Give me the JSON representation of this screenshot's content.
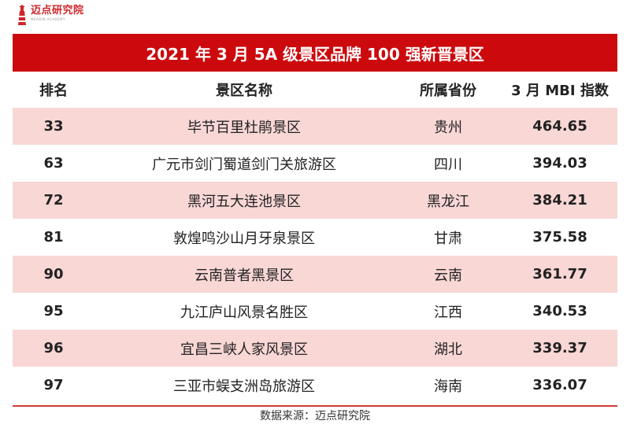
{
  "logo": {
    "name": "迈点研究院",
    "sub": "MEADIN ACADEMY"
  },
  "title": "2021 年 3 月 5A 级景区品牌 100 强新晋景区",
  "table": {
    "headers": [
      "排名",
      "景区名称",
      "所属省份",
      "3 月 MBI 指数"
    ],
    "rows": [
      {
        "rank": "33",
        "name": "毕节百里杜鹃景区",
        "province": "贵州",
        "mbi": "464.65"
      },
      {
        "rank": "63",
        "name": "广元市剑门蜀道剑门关旅游区",
        "province": "四川",
        "mbi": "394.03"
      },
      {
        "rank": "72",
        "name": "黑河五大连池景区",
        "province": "黑龙江",
        "mbi": "384.21"
      },
      {
        "rank": "81",
        "name": "敦煌鸣沙山月牙泉景区",
        "province": "甘肃",
        "mbi": "375.58"
      },
      {
        "rank": "90",
        "name": "云南普者黑景区",
        "province": "云南",
        "mbi": "361.77"
      },
      {
        "rank": "95",
        "name": "九江庐山风景名胜区",
        "province": "江西",
        "mbi": "340.53"
      },
      {
        "rank": "96",
        "name": "宜昌三峡人家风景区",
        "province": "湖北",
        "mbi": "339.37"
      },
      {
        "rank": "97",
        "name": "三亚市蜈支洲岛旅游区",
        "province": "海南",
        "mbi": "336.07"
      }
    ]
  },
  "source": "数据来源：迈点研究院",
  "colors": {
    "title_bg": "#cc0a0d",
    "stripe": "#f8d7d5",
    "footer_line": "#d23b3b"
  }
}
